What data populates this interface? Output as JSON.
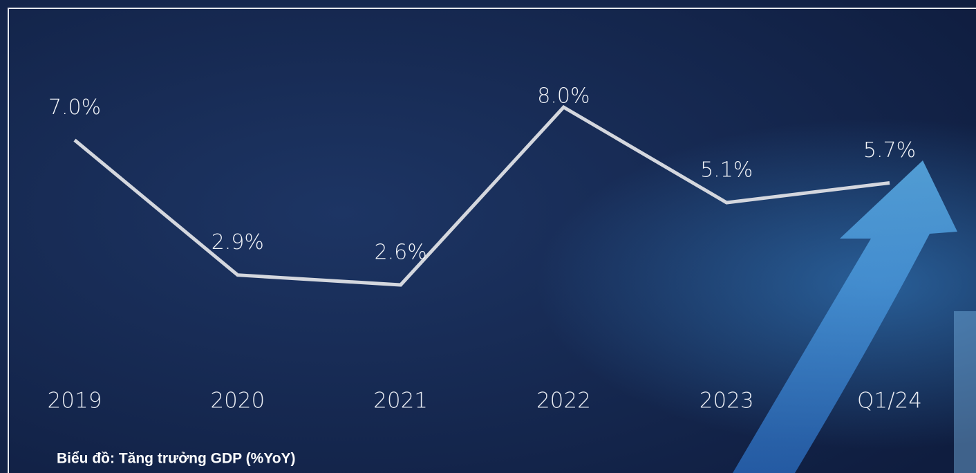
{
  "chart_data": {
    "type": "line",
    "caption": "Biểu đồ: Tăng trưởng GDP (%YoY)",
    "categories": [
      "2019",
      "2020",
      "2021",
      "2022",
      "2023",
      "Q1/24"
    ],
    "values": [
      7.0,
      2.9,
      2.6,
      8.0,
      5.1,
      5.7
    ],
    "value_labels": [
      "7.0%",
      "2.9%",
      "2.6%",
      "8.0%",
      "5.1%",
      "5.7%"
    ],
    "color": "#d4d7de"
  }
}
